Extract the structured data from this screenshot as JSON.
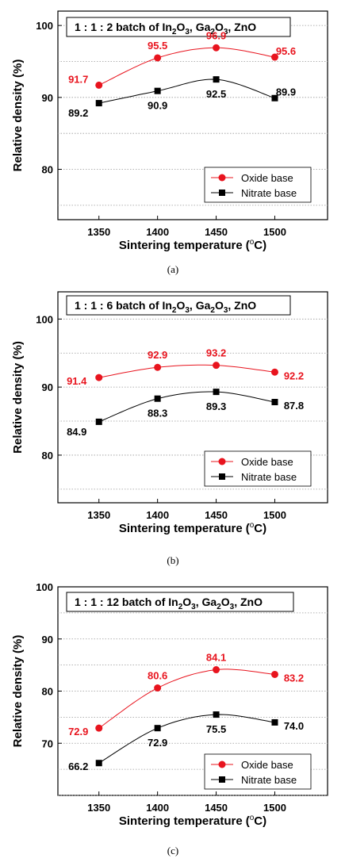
{
  "colors": {
    "oxide": "#e8141e",
    "nitrate": "#000000"
  },
  "chart_data": [
    {
      "type": "line",
      "caption": "(a)",
      "title_parts": [
        "1 : 1 : 2 batch of In",
        "2",
        "O",
        "3",
        ", Ga",
        "2",
        "O",
        "3",
        ", ZnO"
      ],
      "xlabel": "Sintering temperature",
      "xlabel_unit": [
        "(",
        "o",
        "C)"
      ],
      "ylabel": "Relative density (%)",
      "x": [
        1350,
        1400,
        1450,
        1500
      ],
      "xlim": [
        1315,
        1545
      ],
      "ylim": [
        73,
        102
      ],
      "yticks": [
        80,
        90,
        100
      ],
      "grid": "dotted horizontal",
      "legend_position": "lower-right",
      "series": [
        {
          "name": "Oxide base",
          "marker": "circle",
          "color": "#e8141e",
          "values": [
            91.7,
            95.5,
            96.9,
            95.6
          ],
          "labels": [
            "91.7",
            "95.5",
            "96.9",
            "95.6"
          ]
        },
        {
          "name": "Nitrate base",
          "marker": "square",
          "color": "#000000",
          "values": [
            89.2,
            90.9,
            92.5,
            89.9
          ],
          "labels": [
            "89.2",
            "90.9",
            "92.5",
            "89.9"
          ]
        }
      ]
    },
    {
      "type": "line",
      "caption": "(b)",
      "title_parts": [
        "1 : 1 : 6 batch of In",
        "2",
        "O",
        "3",
        ", Ga",
        "2",
        "O",
        "3",
        ", ZnO"
      ],
      "xlabel": "Sintering temperature",
      "xlabel_unit": [
        "(",
        "o",
        "C)"
      ],
      "ylabel": "Relative density (%)",
      "x": [
        1350,
        1400,
        1450,
        1500
      ],
      "xlim": [
        1315,
        1545
      ],
      "ylim": [
        73,
        104
      ],
      "yticks": [
        80,
        90,
        100
      ],
      "grid": "dotted horizontal",
      "legend_position": "lower-right",
      "series": [
        {
          "name": "Oxide base",
          "marker": "circle",
          "color": "#e8141e",
          "values": [
            91.4,
            92.9,
            93.2,
            92.2
          ],
          "labels": [
            "91.4",
            "92.9",
            "93.2",
            "92.2"
          ]
        },
        {
          "name": "Nitrate base",
          "marker": "square",
          "color": "#000000",
          "values": [
            84.9,
            88.3,
            89.3,
            87.8
          ],
          "labels": [
            "84.9",
            "88.3",
            "89.3",
            "87.8"
          ]
        }
      ]
    },
    {
      "type": "line",
      "caption": "(c)",
      "title_parts": [
        "1 : 1 : 12 batch of In",
        "2",
        "O",
        "3",
        ", Ga",
        "2",
        "O",
        "3",
        ", ZnO"
      ],
      "xlabel": "Sintering temperature",
      "xlabel_unit": [
        "(",
        "o",
        "C)"
      ],
      "ylabel": "Relative density (%)",
      "x": [
        1350,
        1400,
        1450,
        1500
      ],
      "xlim": [
        1315,
        1545
      ],
      "ylim": [
        60,
        100
      ],
      "yticks": [
        70,
        80,
        90,
        100
      ],
      "grid": "dotted horizontal",
      "legend_position": "lower-right",
      "series": [
        {
          "name": "Oxide base",
          "marker": "circle",
          "color": "#e8141e",
          "values": [
            72.9,
            80.6,
            84.1,
            83.2
          ],
          "labels": [
            "72.9",
            "80.6",
            "84.1",
            "83.2"
          ]
        },
        {
          "name": "Nitrate base",
          "marker": "square",
          "color": "#000000",
          "values": [
            66.2,
            72.9,
            75.5,
            74.0
          ],
          "labels": [
            "66.2",
            "72.9",
            "75.5",
            "74.0"
          ]
        }
      ]
    }
  ]
}
